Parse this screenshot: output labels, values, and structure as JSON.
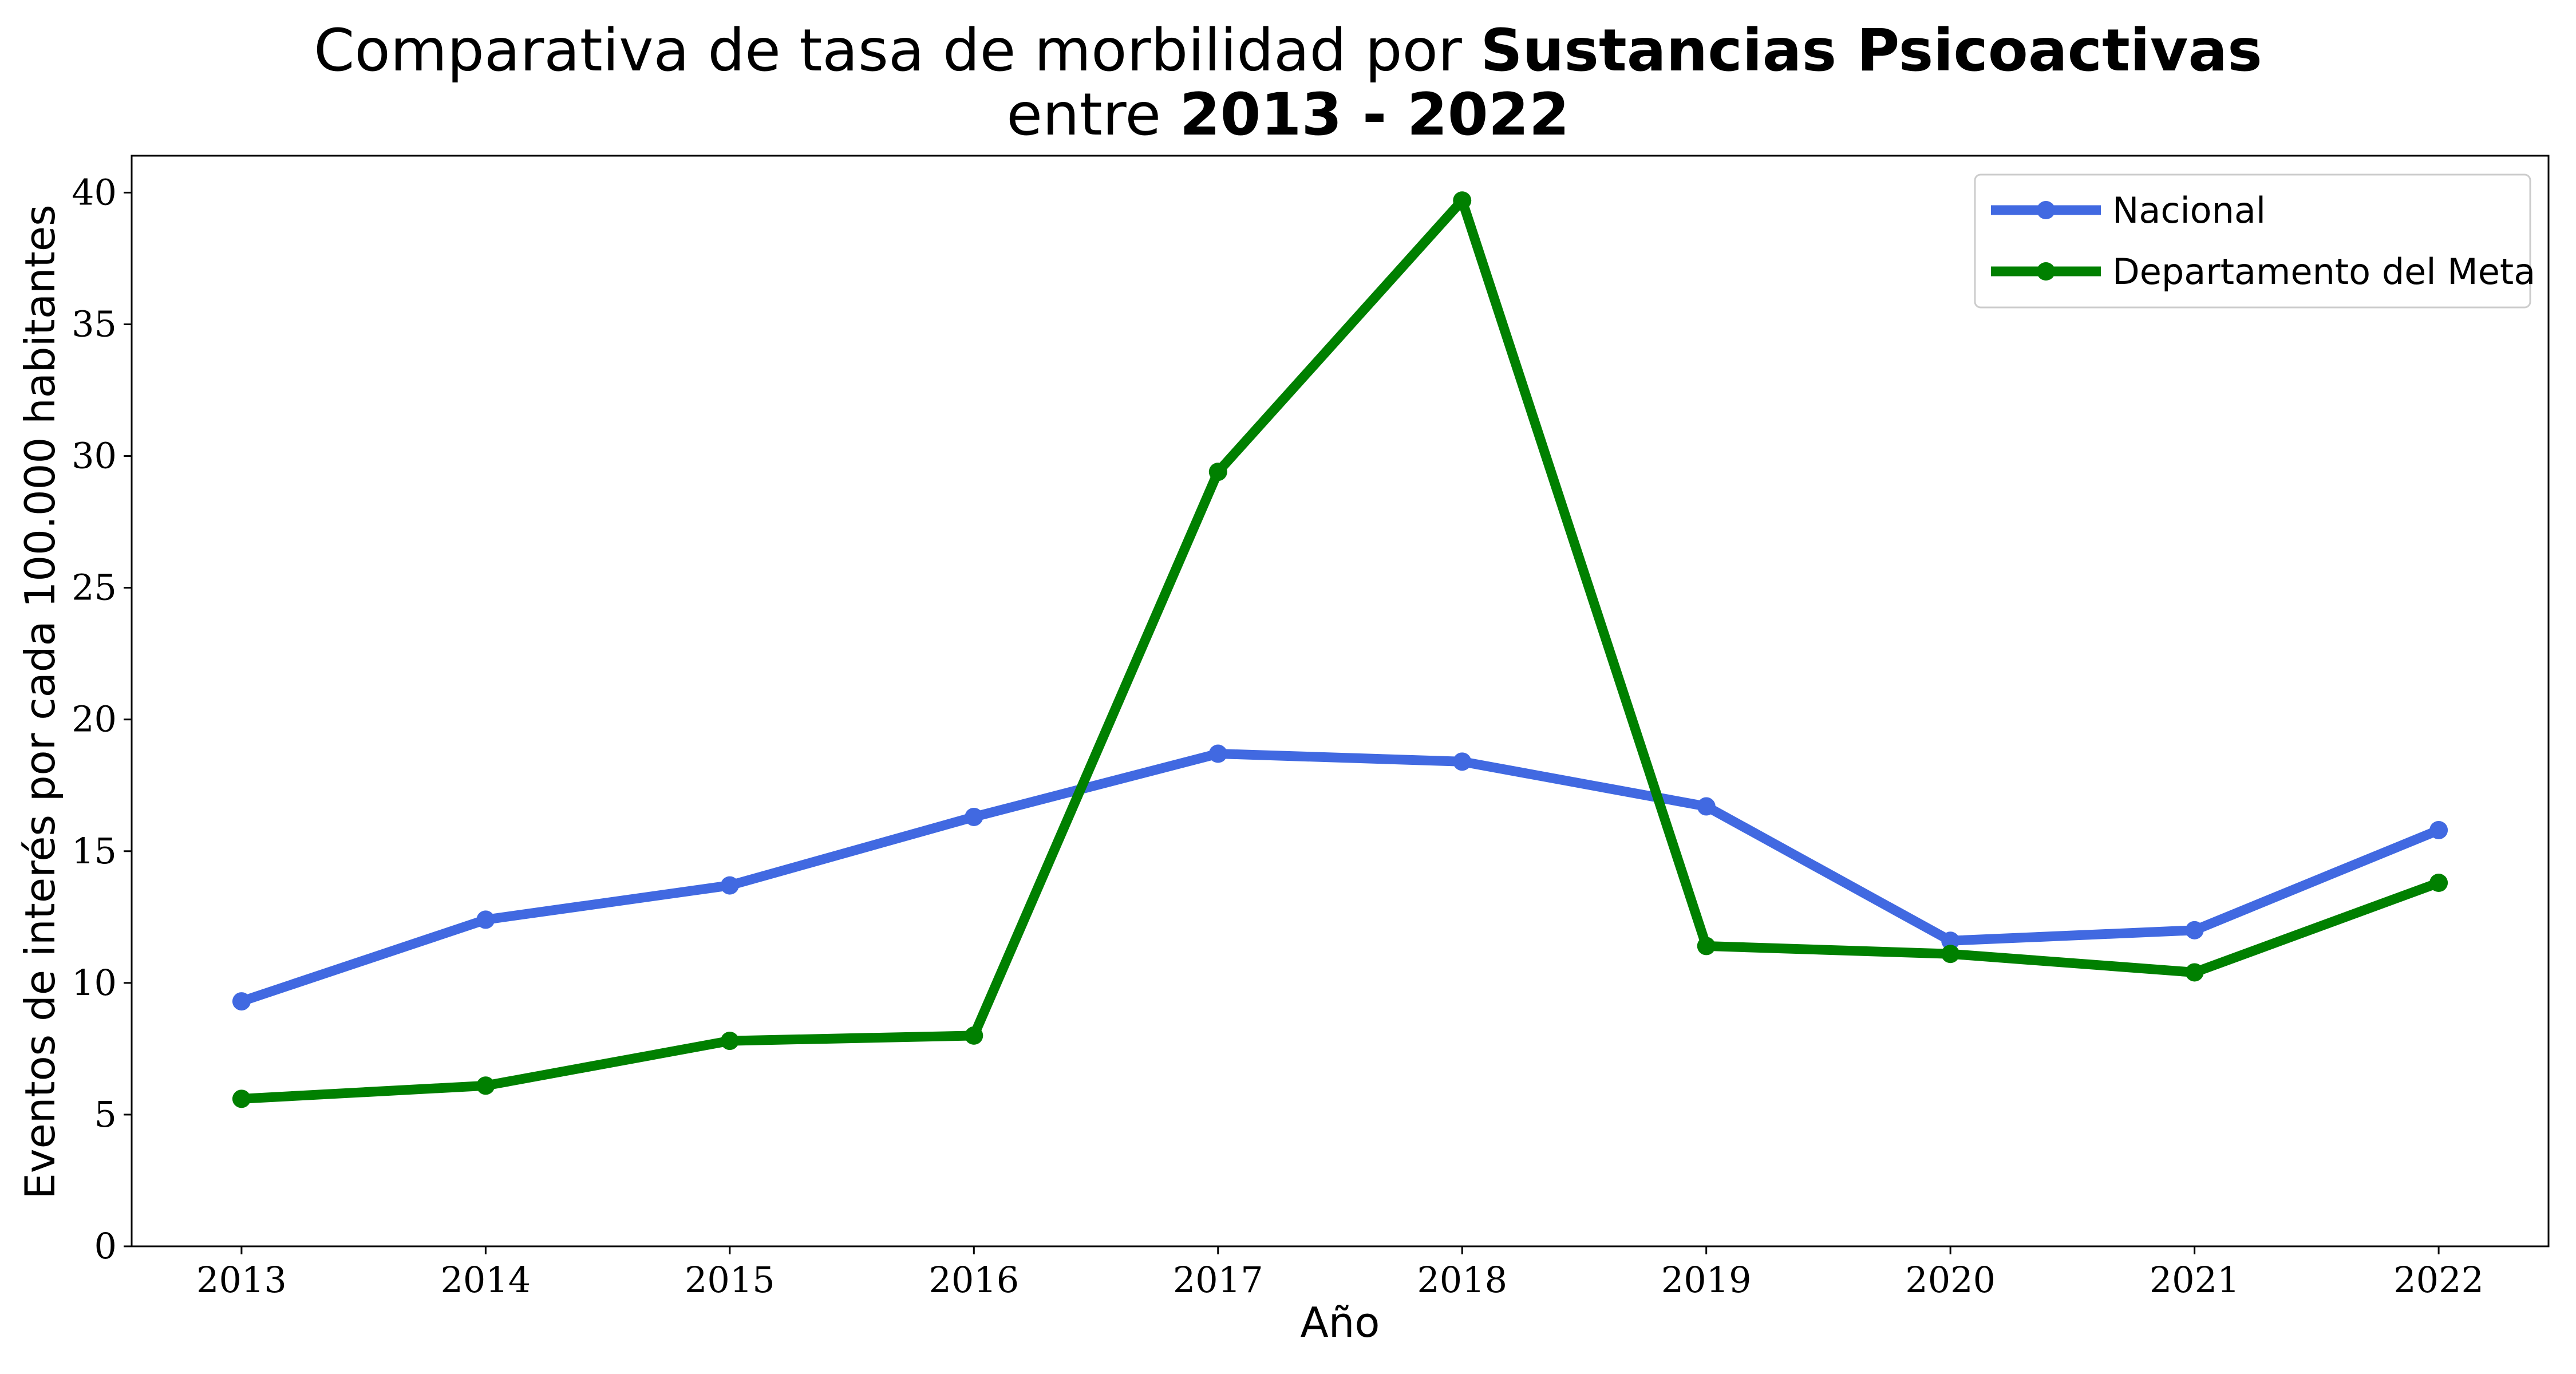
{
  "chart_data": {
    "type": "line",
    "title": {
      "line1_prefix": "Comparativa de tasa de morbilidad por ",
      "line1_bold": "Sustancias Psicoactivas",
      "line2_prefix": "entre ",
      "line2_bold": "2013 - 2022"
    },
    "xlabel": "Año",
    "ylabel": "Eventos de interés por cada 100.000 habitantes",
    "x": [
      2013,
      2014,
      2015,
      2016,
      2017,
      2018,
      2019,
      2020,
      2021,
      2022
    ],
    "xlim": [
      2012.55,
      2022.45
    ],
    "ylim": [
      0,
      41.4
    ],
    "yticks": [
      0,
      5,
      10,
      15,
      20,
      25,
      30,
      35,
      40
    ],
    "series": [
      {
        "name": "Nacional",
        "color": "#4169E1",
        "values": [
          9.3,
          12.4,
          13.7,
          16.3,
          18.7,
          18.4,
          16.7,
          11.6,
          12.0,
          15.8
        ]
      },
      {
        "name": "Departamento del Meta",
        "color": "#008000",
        "values": [
          5.6,
          6.1,
          7.8,
          8.0,
          29.4,
          39.7,
          11.4,
          11.1,
          10.4,
          13.8
        ]
      }
    ],
    "legend_position": "top-right",
    "grid": false
  }
}
